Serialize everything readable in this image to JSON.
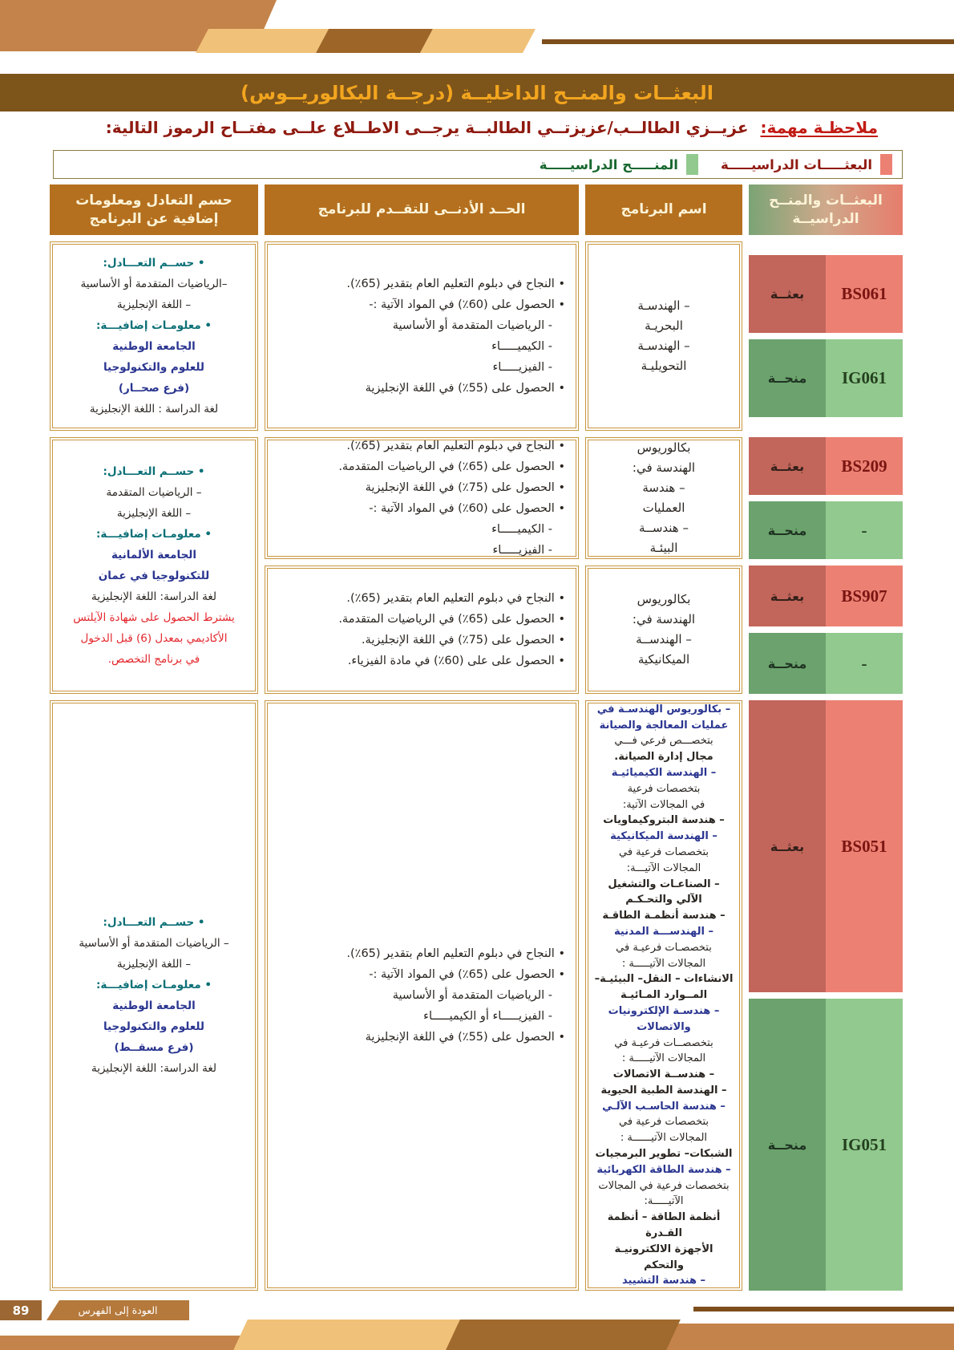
{
  "page": {
    "title": "البعثــات والمنــح الداخليــة (درجــة البكالوريــوس)",
    "note_label": "ملاحظـة مهمة:",
    "note_text": "عزيــزي الطالــب/عزيزتــي الطالبــة يرجــى الاطــلاع علــى مفتــاح الرموز التالية:",
    "page_number": "89",
    "back_to_index": "العودة إلى الفهرس"
  },
  "legend": {
    "scholarships": "البعثـــــات الدراسيـــــة",
    "grants": "المنـــــح الدراسيـــــة",
    "scholarship_color": "#ec8173",
    "grant_color": "#92c98e"
  },
  "table": {
    "headers": {
      "codes": "البعثــات والمنــح الدراسيــة",
      "program": "اسم البرنامج",
      "minimum": "الحــد الأدنــى للتقــدم للبرنامج",
      "info": "حسم التعادل ومعلومات إضافية عن البرنامج"
    },
    "rows": {
      "r1": {
        "scholarship": {
          "label": "بعثــة",
          "code": "BS061"
        },
        "grant": {
          "label": "منحــة",
          "code": "IG061"
        },
        "program": [
          "– الهندسـة",
          "البحريـة",
          "– الهندسـة",
          "التحويليـة"
        ],
        "minimum": [
          "• النجاح في دبلوم التعليم العام بتقدير (65٪).",
          "• الحصول على (60٪) في المواد الآتية :-",
          {
            "t": "- الرياضيات المتقدمة أو الأساسية",
            "s": "sub"
          },
          {
            "t": "- الكيميـــــاء",
            "s": "sub"
          },
          {
            "t": "- الفيزيـــــاء",
            "s": "sub"
          },
          "• الحصول على (55٪) في اللغة الإنجليزية"
        ],
        "info": [
          {
            "t": "• حســم التعـــادل:",
            "s": "teal"
          },
          {
            "t": "–الرياضيات المتقدمة أو الأساسية",
            "s": ""
          },
          {
            "t": "– اللغة الإنجليزية",
            "s": ""
          },
          {
            "t": "• معلومـات إضافيـــة:",
            "s": "teal"
          },
          {
            "t": "الجامعة الوطنية",
            "s": "blue"
          },
          {
            "t": "للعلوم والتكنولوجيا",
            "s": "blue"
          },
          {
            "t": "(فرع صحــار)",
            "s": "blue"
          },
          {
            "t": "لغة الدراسة : اللغة الإنجليزية",
            "s": ""
          }
        ]
      },
      "r2": {
        "scholarship": {
          "label": "بعثــة",
          "code": "BS209"
        },
        "grant": {
          "label": "منحــة",
          "code": "-"
        },
        "program": [
          "بكالوريوس",
          "الهندسة في:",
          "– هندسة",
          "العمليات",
          "– هندســة",
          "البيئـة"
        ],
        "minimum": [
          "• النجاح في دبلوم التعليم العام بتقدير (65٪).",
          "• الحصول على (65٪) في الرياضيات المتقدمة.",
          "• الحصول على (75٪) في اللغة الإنجليزية",
          "• الحصول على (60٪) في المواد الآتية :-",
          {
            "t": "- الكيميـــــاء",
            "s": "sub"
          },
          {
            "t": "- الفيزيـــــاء",
            "s": "sub"
          }
        ],
        "info": [
          {
            "t": "• حســم التعـــادل:",
            "s": "teal"
          },
          {
            "t": "– الرياضيات المتقدمة",
            "s": ""
          },
          {
            "t": "– اللغة الإنجليزية",
            "s": ""
          },
          {
            "t": "• معلومـات إضافيـــة:",
            "s": "teal"
          },
          {
            "t": "الجامعة الألمانية",
            "s": "blue"
          },
          {
            "t": "للتكنولوجيا في عمان",
            "s": "blue"
          },
          {
            "t": "لغة الدراسة: اللغة الإنجليزية",
            "s": ""
          },
          {
            "t": "يشترط الحصول على شهادة الآيلتس",
            "s": "red"
          },
          {
            "t": "الأكاديمي بمعدل (6) قبل الدخول",
            "s": "red"
          },
          {
            "t": "في برنامج التخصص.",
            "s": "red"
          }
        ]
      },
      "r3": {
        "scholarship": {
          "label": "بعثــة",
          "code": "BS907"
        },
        "grant": {
          "label": "منحــة",
          "code": "-"
        },
        "program": [
          "بكالوريوس",
          "الهندسة في:",
          "– الهندســة",
          "الميكانيكية"
        ],
        "minimum": [
          "• النجاح في دبلوم التعليم العام بتقدير (65٪).",
          "• الحصول على (65٪) في الرياضيات المتقدمة.",
          "• الحصول على (75٪) في اللغة الإنجليزية.",
          "• الحصول على على (60٪) في مادة الفيزياء."
        ]
      },
      "r4": {
        "scholarship": {
          "label": "بعثــة",
          "code": "BS051"
        },
        "grant": {
          "label": "منحــة",
          "code": "IG051"
        },
        "program": [
          {
            "t": "– بكالوريوس الهندسـة في",
            "s": "blue"
          },
          {
            "t": "عمليات المعالجة والصيانة",
            "s": "blue"
          },
          {
            "t": "بتخصـــص فرعي فـــي",
            "s": ""
          },
          {
            "t": "مجال إدارة الصيانة.",
            "s": "dbold"
          },
          {
            "t": "– الهندسة الكيميائيـة",
            "s": "blue"
          },
          {
            "t": "بتخصصات فرعية",
            "s": ""
          },
          {
            "t": "في المجالات الآتية:",
            "s": ""
          },
          {
            "t": "– هندسة البتروكيماويات",
            "s": "dbold"
          },
          {
            "t": "– الهندسة الميكانيكية",
            "s": "blue"
          },
          {
            "t": "بتخصصات فرعية في",
            "s": ""
          },
          {
            "t": "المجالات الآتيـــة:",
            "s": ""
          },
          {
            "t": "– الصناعـات والتشغيل",
            "s": "dbold"
          },
          {
            "t": "الآلي والتحـكـم",
            "s": "dbold"
          },
          {
            "t": "– هندسة أنظمـة الطاقـة",
            "s": "dbold"
          },
          {
            "t": "– الهندســـة المدنية",
            "s": "blue"
          },
          {
            "t": "بتخصصـات فرعيـة في",
            "s": ""
          },
          {
            "t": "المجالات الآتيـــــة :",
            "s": ""
          },
          {
            "t": "الانشاءات – النقل– البيئيـة–",
            "s": "dbold"
          },
          {
            "t": "المــوارد المـائيـة",
            "s": "dbold"
          },
          {
            "t": "– هندسـة الإلكترونيات",
            "s": "blue"
          },
          {
            "t": "والاتصالات",
            "s": "blue"
          },
          {
            "t": "بتخصصــات فرعيـة في",
            "s": ""
          },
          {
            "t": "المجالات الآتيـــــة :",
            "s": ""
          },
          {
            "t": "– هندســة الاتصالات",
            "s": "dbold"
          },
          {
            "t": "– الهندسة الطبية الحيوية",
            "s": "dbold"
          },
          {
            "t": "– هندسة الحاسـب الآلـي",
            "s": "blue"
          },
          {
            "t": "بتخصصات فرعية في",
            "s": ""
          },
          {
            "t": "المجالات الآتيــــــة :",
            "s": ""
          },
          {
            "t": "الشبكات– تطوير البرمجيات",
            "s": "dbold"
          },
          {
            "t": "– هندسة الطاقة الكهربائية",
            "s": "blue"
          },
          {
            "t": "بتخصصات فرعية في المجالات",
            "s": ""
          },
          {
            "t": "الآتيـــــة:",
            "s": ""
          },
          {
            "t": "أنظمة الطاقة – أنظمة القـدرة",
            "s": "dbold"
          },
          {
            "t": "الأجهزة الالكترونيـة",
            "s": "dbold"
          },
          {
            "t": "والتحكم",
            "s": "dbold"
          },
          {
            "t": "– هندسة التشييد",
            "s": "blue"
          }
        ],
        "minimum": [
          "• النجاح في دبلوم التعليم العام بتقدير (65٪).",
          "• الحصول على (65٪) في المواد الآتية :-",
          {
            "t": "- الرياضيات المتقدمة أو الأساسية",
            "s": "sub"
          },
          {
            "t": "- الفيزيـــــاء أو الكيميـــــاء",
            "s": "sub"
          },
          "• الحصول على (55٪) في اللغة الإنجليزية"
        ],
        "info": [
          {
            "t": "• حســم التعـــادل:",
            "s": "teal"
          },
          {
            "t": "– الرياضيات المتقدمة أو الأساسية",
            "s": ""
          },
          {
            "t": "– اللغة الإنجليزية",
            "s": ""
          },
          {
            "t": "• معلومـات إضافيـــة:",
            "s": "teal"
          },
          {
            "t": "الجامعة الوطنية",
            "s": "blue"
          },
          {
            "t": "للعلوم والتكنولوجيا",
            "s": "blue"
          },
          {
            "t": "(فرع مسقــط)",
            "s": "blue"
          },
          {
            "t": "لغة الدراسة: اللغة الإنجليزية",
            "s": ""
          }
        ]
      }
    }
  }
}
